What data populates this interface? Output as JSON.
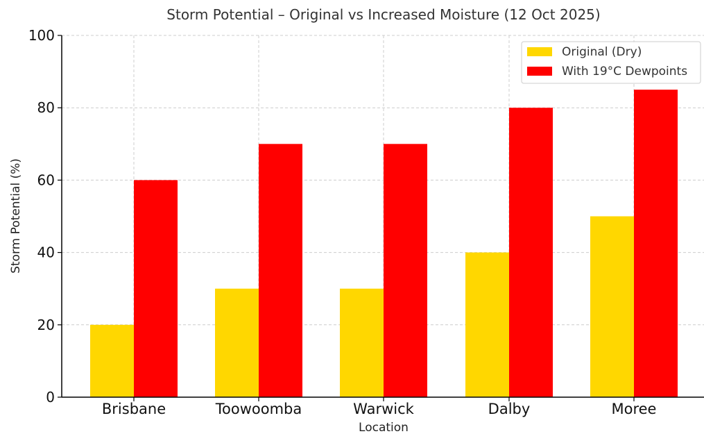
{
  "chart_data": {
    "type": "bar",
    "title": "Storm Potential – Original vs Increased Moisture (12 Oct 2025)",
    "xlabel": "Location",
    "ylabel": "Storm Potential (%)",
    "ylim": [
      0,
      100
    ],
    "yticks": [
      0,
      20,
      40,
      60,
      80,
      100
    ],
    "categories": [
      "Brisbane",
      "Toowoomba",
      "Warwick",
      "Dalby",
      "Moree"
    ],
    "series": [
      {
        "name": "Original (Dry)",
        "color": "#FFD700",
        "values": [
          20,
          30,
          30,
          40,
          50
        ]
      },
      {
        "name": "With 19°C Dewpoints",
        "color": "#FF0000",
        "values": [
          60,
          70,
          70,
          80,
          85
        ]
      }
    ],
    "grid": true,
    "legend_position": "top-right"
  }
}
